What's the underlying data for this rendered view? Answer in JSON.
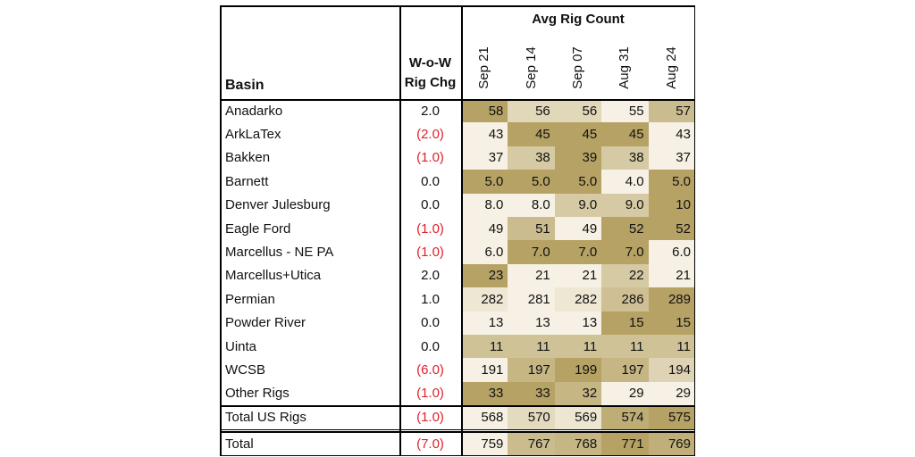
{
  "chart_data": {
    "type": "table",
    "headers": {
      "basin": "Basin",
      "change": "W-o-W Rig Chg",
      "group": "Avg Rig Count",
      "dates": [
        "Sep 21",
        "Sep 14",
        "Sep 07",
        "Aug 31",
        "Aug 24"
      ]
    },
    "rows": [
      {
        "basin": "Anadarko",
        "change": "2.0",
        "values": [
          "58",
          "56",
          "56",
          "55",
          "57"
        ]
      },
      {
        "basin": "ArkLaTex",
        "change": "(2.0)",
        "values": [
          "43",
          "45",
          "45",
          "45",
          "43"
        ]
      },
      {
        "basin": "Bakken",
        "change": "(1.0)",
        "values": [
          "37",
          "38",
          "39",
          "38",
          "37"
        ]
      },
      {
        "basin": "Barnett",
        "change": "0.0",
        "values": [
          "5.0",
          "5.0",
          "5.0",
          "4.0",
          "5.0"
        ]
      },
      {
        "basin": "Denver Julesburg",
        "change": "0.0",
        "values": [
          "8.0",
          "8.0",
          "9.0",
          "9.0",
          "10"
        ]
      },
      {
        "basin": "Eagle Ford",
        "change": "(1.0)",
        "values": [
          "49",
          "51",
          "49",
          "52",
          "52"
        ]
      },
      {
        "basin": "Marcellus - NE PA",
        "change": "(1.0)",
        "values": [
          "6.0",
          "7.0",
          "7.0",
          "7.0",
          "6.0"
        ]
      },
      {
        "basin": "Marcellus+Utica",
        "change": "2.0",
        "values": [
          "23",
          "21",
          "21",
          "22",
          "21"
        ]
      },
      {
        "basin": "Permian",
        "change": "1.0",
        "values": [
          "282",
          "281",
          "282",
          "286",
          "289"
        ]
      },
      {
        "basin": "Powder River",
        "change": "0.0",
        "values": [
          "13",
          "13",
          "13",
          "15",
          "15"
        ]
      },
      {
        "basin": "Uinta",
        "change": "0.0",
        "values": [
          "11",
          "11",
          "11",
          "11",
          "11"
        ]
      },
      {
        "basin": "WCSB",
        "change": "(6.0)",
        "values": [
          "191",
          "197",
          "199",
          "197",
          "194"
        ]
      },
      {
        "basin": "Other Rigs",
        "change": "(1.0)",
        "values": [
          "33",
          "33",
          "32",
          "29",
          "29"
        ]
      },
      {
        "basin": "Total US Rigs",
        "change": "(1.0)",
        "values": [
          "568",
          "570",
          "569",
          "574",
          "575"
        ]
      },
      {
        "basin": "Total",
        "change": "(7.0)",
        "values": [
          "759",
          "767",
          "768",
          "771",
          "769"
        ]
      }
    ]
  },
  "colors": {
    "heat_low": "#f6f1e4",
    "heat_high": "#b6a264",
    "negative": "#e0202a",
    "border": "#000000"
  }
}
